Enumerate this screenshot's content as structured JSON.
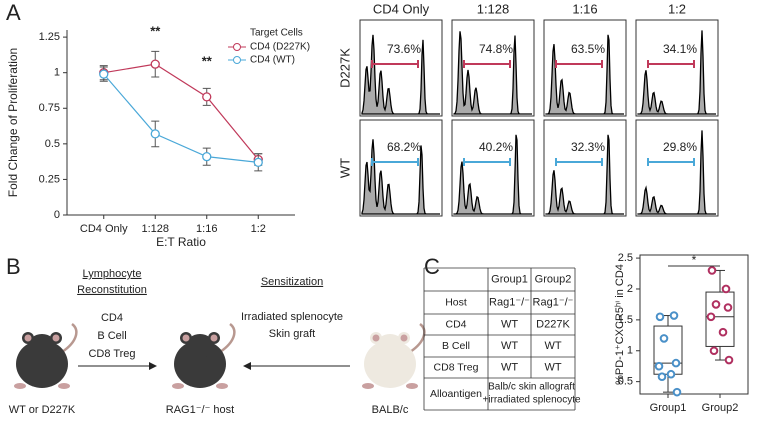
{
  "panel_labels": [
    "A",
    "B",
    "C"
  ],
  "chart_data": [
    {
      "type": "line",
      "ylabel": "Fold Change of Proliferation",
      "xlabel": "E:T Ratio",
      "categories": [
        "CD4 Only",
        "1:128",
        "1:16",
        "1:2"
      ],
      "ylim": [
        0,
        1.3
      ],
      "yticks": [
        0,
        0.25,
        0.5,
        0.75,
        1,
        1.25
      ],
      "legend_title": "Target Cells",
      "series": [
        {
          "name": "CD4 (D227K)",
          "color": "#c0395a",
          "values": [
            1.0,
            1.06,
            0.83,
            0.39
          ],
          "errors": [
            0.05,
            0.09,
            0.06,
            0.04
          ]
        },
        {
          "name": "CD4 (WT)",
          "color": "#4aa8d8",
          "values": [
            0.99,
            0.57,
            0.41,
            0.37
          ],
          "errors": [
            0.05,
            0.09,
            0.06,
            0.06
          ]
        }
      ],
      "annotations": [
        "**",
        "**"
      ]
    },
    {
      "type": "box",
      "ylabel": "%PD-1⁺CXCR5ʰⁱ in CD4",
      "ylim": [
        0.3,
        2.55
      ],
      "yticks": [
        0.5,
        1,
        1.5,
        2,
        2.5
      ],
      "significance": "*",
      "groups": [
        {
          "name": "Group1",
          "color": "#4a90c8",
          "points": [
            1.55,
            1.57,
            1.2,
            0.8,
            0.75,
            0.62,
            0.58,
            0.33
          ],
          "whisker_low": 0.33,
          "q1": 0.62,
          "median": 0.8,
          "q3": 1.4,
          "whisker_high": 1.57
        },
        {
          "name": "Group2",
          "color": "#b03060",
          "points": [
            2.3,
            2.0,
            1.75,
            1.7,
            1.55,
            1.3,
            1.0,
            0.85
          ],
          "whisker_low": 0.85,
          "q1": 1.07,
          "median": 1.55,
          "q3": 1.95,
          "whisker_high": 2.3
        }
      ]
    }
  ],
  "flow": {
    "columns": [
      "CD4 Only",
      "1:128",
      "1:16",
      "1:2"
    ],
    "rows": [
      "D227K",
      "WT"
    ],
    "percents": [
      [
        "73.6%",
        "74.8%",
        "63.5%",
        "34.1%"
      ],
      [
        "68.2%",
        "40.2%",
        "32.3%",
        "29.8%"
      ]
    ]
  },
  "diagram": {
    "step1": {
      "title": [
        "Lymphocyte",
        "Reconstitution"
      ],
      "items": [
        "CD4",
        "B Cell",
        "CD8 Treg"
      ]
    },
    "step2": {
      "title": "Sensitization",
      "items": [
        "Irradiated splenocyte",
        "Skin graft"
      ]
    },
    "mice": [
      "WT or D227K",
      "RAG1⁻/⁻ host",
      "BALB/c"
    ]
  },
  "table": {
    "columns": [
      "Group1",
      "Group2"
    ],
    "rows": [
      {
        "label": "Host",
        "cells": [
          "Rag1⁻/⁻",
          "Rag1⁻/⁻"
        ]
      },
      {
        "label": "CD4",
        "cells": [
          "WT",
          "D227K"
        ]
      },
      {
        "label": "B Cell",
        "cells": [
          "WT",
          "WT"
        ]
      },
      {
        "label": "CD8 Treg",
        "cells": [
          "WT",
          "WT"
        ]
      }
    ],
    "merged_row": {
      "label": "Alloantigen",
      "lines": [
        "Balb/c skin allograft",
        "+irradiated splenocyte"
      ]
    }
  }
}
